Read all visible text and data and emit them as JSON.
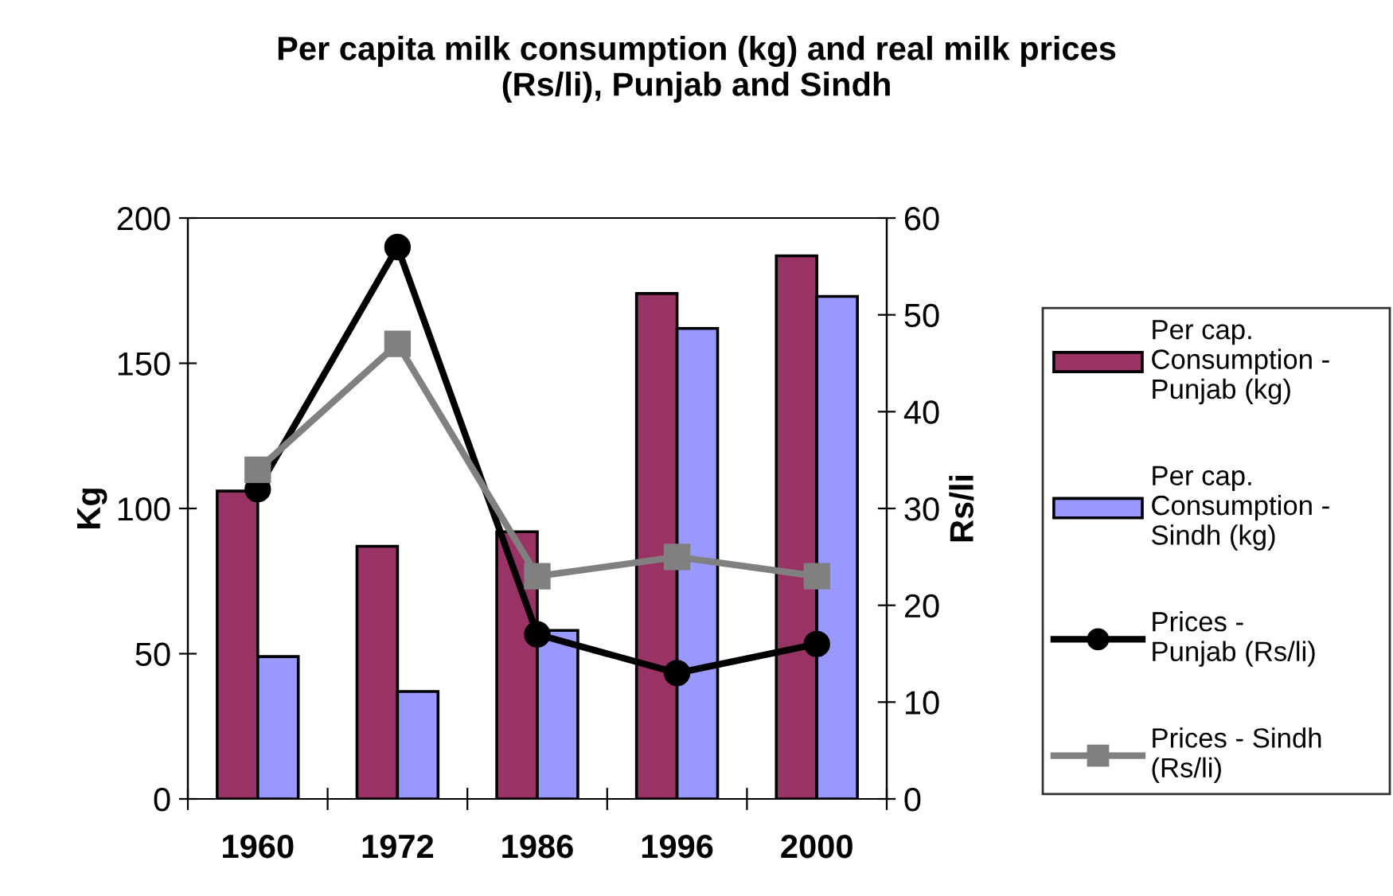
{
  "chart_data": {
    "type": "bar",
    "title": "Per capita milk consumption (kg) and real milk prices\n(Rs/li), Punjab and Sindh",
    "ylabel": "Kg",
    "y2label": "Rs/li",
    "categories": [
      "1960",
      "1972",
      "1986",
      "1996",
      "2000"
    ],
    "series": [
      {
        "name": "Per cap. Consumption - Punjab (kg)",
        "color": "#993366",
        "values": [
          106,
          87,
          92,
          174,
          187
        ]
      },
      {
        "name": "Per cap. Consumption - Sindh (kg)",
        "color": "#9999ff",
        "values": [
          49,
          37,
          58,
          162,
          173
        ]
      },
      {
        "name": "Prices - Punjab (Rs/li)",
        "type": "line",
        "axis": "y2",
        "color": "#000000",
        "marker": "circle",
        "values": [
          32,
          57,
          17,
          13,
          16
        ]
      },
      {
        "name": "Prices - Sindh (Rs/li)",
        "type": "line",
        "axis": "y2",
        "color": "#808080",
        "marker": "square",
        "values": [
          34,
          47,
          23,
          25,
          23
        ]
      }
    ],
    "ylim": [
      0,
      200
    ],
    "yticks": [
      0,
      50,
      100,
      150,
      200
    ],
    "y2lim": [
      0,
      60
    ],
    "y2ticks": [
      0,
      10,
      20,
      30,
      40,
      50,
      60
    ],
    "grid": false,
    "legend": "right"
  }
}
